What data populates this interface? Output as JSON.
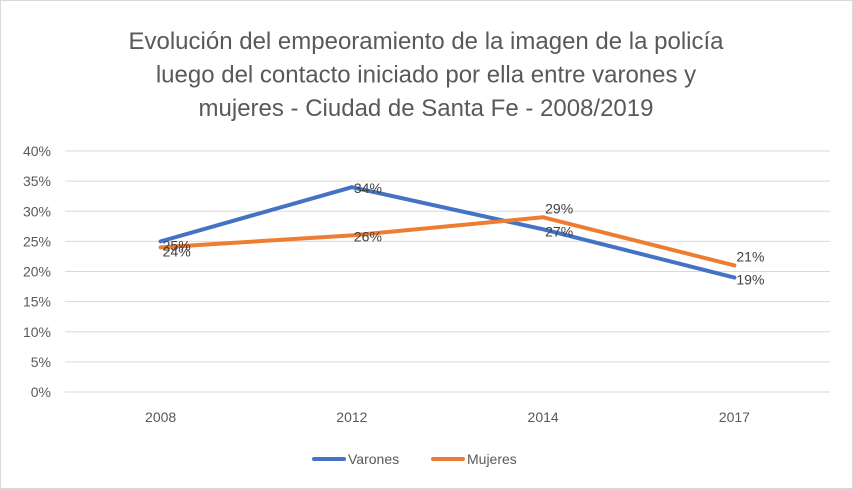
{
  "chart_data": {
    "type": "line",
    "title_lines": [
      "Evolución del empeoramiento de la imagen de la policía",
      "luego del contacto iniciado por ella entre varones y",
      "mujeres - Ciudad de Santa Fe  - 2008/2019"
    ],
    "categories": [
      "2008",
      "2012",
      "2014",
      "2017"
    ],
    "series": [
      {
        "name": "Varones",
        "color": "#4472C4",
        "values": [
          25,
          34,
          27,
          19
        ],
        "labels": [
          "25%",
          "34%",
          "27%",
          "19%"
        ]
      },
      {
        "name": "Mujeres",
        "color": "#ED7D31",
        "values": [
          24,
          26,
          29,
          21
        ],
        "labels": [
          "24%",
          "26%",
          "29%",
          "21%"
        ]
      }
    ],
    "ylim": [
      0,
      40
    ],
    "y_ticks": [
      0,
      5,
      10,
      15,
      20,
      25,
      30,
      35,
      40
    ],
    "y_tick_labels": [
      "0%",
      "5%",
      "10%",
      "15%",
      "20%",
      "25%",
      "30%",
      "35%",
      "40%"
    ],
    "grid": true,
    "legend_position": "bottom",
    "xlabel": "",
    "ylabel": ""
  }
}
